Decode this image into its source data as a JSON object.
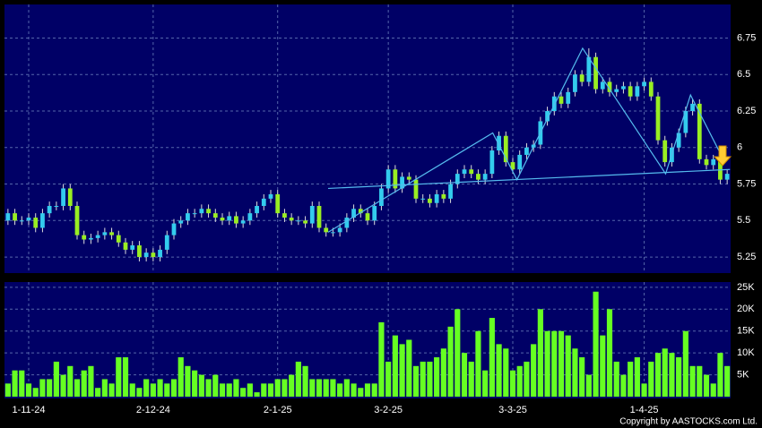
{
  "chart_data": {
    "type": "candlestick",
    "categories": [
      null,
      null,
      null,
      "1-11-24",
      null,
      null,
      null,
      null,
      null,
      null,
      null,
      null,
      null,
      null,
      null,
      null,
      null,
      null,
      null,
      null,
      null,
      "2-12-24",
      null,
      null,
      null,
      null,
      null,
      null,
      null,
      null,
      null,
      null,
      null,
      null,
      null,
      null,
      null,
      null,
      null,
      "2-1-25",
      null,
      null,
      null,
      null,
      null,
      null,
      null,
      null,
      null,
      null,
      null,
      null,
      null,
      null,
      null,
      "3-2-25",
      null,
      null,
      null,
      null,
      null,
      null,
      null,
      null,
      null,
      null,
      null,
      null,
      null,
      null,
      null,
      null,
      null,
      "3-3-25",
      null,
      null,
      null,
      null,
      null,
      null,
      null,
      null,
      null,
      null,
      null,
      null,
      null,
      null,
      null,
      null,
      null,
      null,
      "1-4-25",
      null,
      null,
      null,
      null,
      null,
      null,
      null,
      null,
      null,
      null,
      null,
      null
    ],
    "open": [
      5.5,
      5.55,
      5.5,
      5.5,
      5.52,
      5.45,
      5.55,
      5.6,
      5.6,
      5.72,
      5.6,
      5.4,
      5.37,
      5.38,
      5.4,
      5.42,
      5.4,
      5.35,
      5.3,
      5.33,
      5.25,
      5.28,
      5.25,
      5.3,
      5.4,
      5.48,
      5.5,
      5.55,
      5.55,
      5.58,
      5.55,
      5.52,
      5.5,
      5.53,
      5.48,
      5.5,
      5.55,
      5.6,
      5.65,
      5.68,
      5.55,
      5.52,
      5.5,
      5.5,
      5.48,
      5.6,
      5.45,
      5.42,
      5.42,
      5.45,
      5.52,
      5.58,
      5.55,
      5.5,
      5.6,
      5.72,
      5.85,
      5.72,
      5.8,
      5.78,
      5.65,
      5.65,
      5.62,
      5.68,
      5.65,
      5.75,
      5.82,
      5.85,
      5.82,
      5.78,
      5.82,
      5.98,
      6.08,
      5.9,
      5.85,
      5.95,
      6.0,
      6.02,
      6.18,
      6.25,
      6.35,
      6.3,
      6.38,
      6.5,
      6.45,
      6.62,
      6.4,
      6.45,
      6.38,
      6.4,
      6.42,
      6.35,
      6.42,
      6.45,
      6.35,
      6.05,
      5.9,
      6.0,
      6.1,
      6.25,
      6.3,
      5.92,
      5.88,
      5.92,
      5.78
    ],
    "high": [
      5.58,
      5.58,
      5.53,
      5.55,
      5.55,
      5.58,
      5.63,
      5.63,
      5.75,
      5.75,
      5.63,
      5.43,
      5.41,
      5.43,
      5.45,
      5.45,
      5.43,
      5.38,
      5.36,
      5.36,
      5.31,
      5.31,
      5.33,
      5.43,
      5.51,
      5.53,
      5.58,
      5.58,
      5.61,
      5.61,
      5.58,
      5.55,
      5.56,
      5.56,
      5.53,
      5.58,
      5.63,
      5.68,
      5.71,
      5.71,
      5.58,
      5.55,
      5.53,
      5.53,
      5.63,
      5.63,
      5.48,
      5.45,
      5.48,
      5.55,
      5.61,
      5.61,
      5.58,
      5.63,
      5.75,
      5.88,
      5.88,
      5.83,
      5.83,
      5.81,
      5.68,
      5.68,
      5.71,
      5.71,
      5.78,
      5.85,
      5.88,
      5.88,
      5.85,
      5.85,
      6.01,
      6.11,
      6.11,
      5.93,
      5.98,
      6.03,
      6.05,
      6.21,
      6.28,
      6.38,
      6.38,
      6.41,
      6.53,
      6.53,
      6.68,
      6.65,
      6.48,
      6.48,
      6.43,
      6.45,
      6.45,
      6.45,
      6.48,
      6.48,
      6.38,
      6.08,
      6.03,
      6.13,
      6.28,
      6.33,
      6.33,
      5.95,
      5.95,
      5.95,
      5.85
    ],
    "low": [
      5.47,
      5.47,
      5.47,
      5.47,
      5.42,
      5.42,
      5.52,
      5.57,
      5.57,
      5.57,
      5.37,
      5.34,
      5.34,
      5.35,
      5.37,
      5.37,
      5.32,
      5.27,
      5.27,
      5.22,
      5.22,
      5.22,
      5.22,
      5.27,
      5.37,
      5.45,
      5.47,
      5.52,
      5.52,
      5.52,
      5.49,
      5.47,
      5.47,
      5.45,
      5.45,
      5.47,
      5.52,
      5.57,
      5.62,
      5.52,
      5.49,
      5.47,
      5.47,
      5.45,
      5.45,
      5.42,
      5.39,
      5.39,
      5.39,
      5.42,
      5.49,
      5.52,
      5.47,
      5.47,
      5.57,
      5.69,
      5.69,
      5.69,
      5.75,
      5.62,
      5.62,
      5.59,
      5.59,
      5.62,
      5.62,
      5.72,
      5.79,
      5.79,
      5.75,
      5.75,
      5.79,
      5.95,
      5.87,
      5.82,
      5.82,
      5.92,
      5.97,
      5.99,
      6.15,
      6.22,
      6.27,
      6.27,
      6.35,
      6.42,
      6.42,
      6.37,
      6.37,
      6.35,
      6.35,
      6.37,
      6.32,
      6.32,
      6.39,
      6.32,
      6.02,
      5.87,
      5.87,
      5.97,
      6.07,
      6.22,
      5.89,
      5.85,
      5.85,
      5.75,
      5.75
    ],
    "close": [
      5.55,
      5.5,
      5.5,
      5.52,
      5.45,
      5.55,
      5.6,
      5.6,
      5.72,
      5.6,
      5.4,
      5.37,
      5.38,
      5.4,
      5.42,
      5.4,
      5.35,
      5.3,
      5.33,
      5.25,
      5.28,
      5.25,
      5.3,
      5.4,
      5.48,
      5.5,
      5.55,
      5.55,
      5.58,
      5.55,
      5.52,
      5.5,
      5.53,
      5.48,
      5.5,
      5.55,
      5.6,
      5.65,
      5.68,
      5.55,
      5.52,
      5.5,
      5.5,
      5.48,
      5.6,
      5.45,
      5.42,
      5.42,
      5.45,
      5.52,
      5.58,
      5.55,
      5.5,
      5.6,
      5.72,
      5.85,
      5.72,
      5.8,
      5.78,
      5.65,
      5.65,
      5.62,
      5.68,
      5.65,
      5.75,
      5.82,
      5.85,
      5.82,
      5.78,
      5.82,
      5.98,
      6.08,
      5.9,
      5.85,
      5.95,
      6.0,
      6.02,
      6.18,
      6.25,
      6.35,
      6.3,
      6.38,
      6.5,
      6.45,
      6.62,
      6.4,
      6.45,
      6.38,
      6.4,
      6.42,
      6.35,
      6.42,
      6.45,
      6.35,
      6.05,
      5.9,
      6.0,
      6.1,
      6.25,
      6.3,
      5.92,
      5.88,
      5.92,
      5.78,
      5.82
    ],
    "volume": [
      3000,
      6000,
      6000,
      3000,
      2000,
      4000,
      4000,
      8000,
      5000,
      7000,
      4000,
      6000,
      7000,
      2000,
      4000,
      3000,
      9000,
      9000,
      3000,
      2000,
      4000,
      3000,
      4000,
      3000,
      4000,
      9000,
      7000,
      6000,
      5000,
      4000,
      5000,
      3000,
      3000,
      4000,
      2000,
      3000,
      1000,
      3000,
      3000,
      4000,
      4000,
      5000,
      8000,
      7000,
      4000,
      4000,
      4000,
      4000,
      3000,
      4000,
      3000,
      2000,
      3000,
      3000,
      17000,
      8000,
      14000,
      12000,
      13000,
      7000,
      8000,
      8000,
      9000,
      11000,
      16000,
      20000,
      10000,
      8000,
      15000,
      6000,
      18000,
      12000,
      11000,
      6000,
      7000,
      8000,
      12000,
      20000,
      15000,
      15000,
      15000,
      14000,
      11000,
      9000,
      5000,
      24000,
      14000,
      20000,
      8000,
      5000,
      8000,
      9000,
      3000,
      8000,
      10000,
      11000,
      10000,
      9000,
      15000,
      7000,
      7000,
      5000,
      3000,
      10000,
      7000
    ],
    "up_color": "#33ccee",
    "down_color": "#99ee22",
    "volume_color": "#66ff22",
    "trendline_color": "#55bbee",
    "ylim": [
      5.14,
      6.98
    ],
    "yticks": [
      5.25,
      5.5,
      5.75,
      6,
      6.25,
      6.5,
      6.75
    ],
    "volume_ylim": [
      0,
      26200
    ],
    "volume_yticks": [
      {
        "value": 5000,
        "label": "5K"
      },
      {
        "value": 10000,
        "label": "10K"
      },
      {
        "value": 15000,
        "label": "15K"
      },
      {
        "value": 20000,
        "label": "20K"
      },
      {
        "value": 25000,
        "label": "25K"
      }
    ],
    "grid": true,
    "trendlines": [
      {
        "x": [
          46.3,
          70.1,
          73.6,
          83.1,
          95.1,
          98.7,
          102.9
        ],
        "y": [
          5.42,
          6.1,
          5.78,
          6.68,
          5.82,
          6.36,
          5.97
        ]
      },
      {
        "x": [
          46.3,
          104.4
        ],
        "y": [
          5.72,
          5.85
        ]
      }
    ],
    "copyright": "Copyright by AASTOCKS.com Ltd."
  }
}
